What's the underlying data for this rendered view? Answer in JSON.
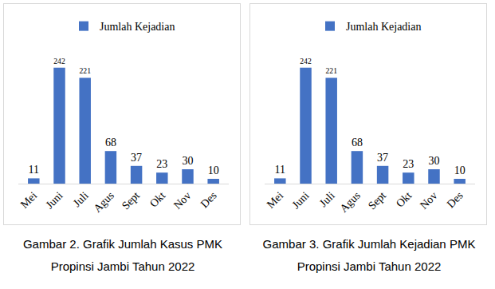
{
  "chart_data": [
    {
      "type": "bar",
      "title": "Gambar 2. Grafik Jumlah Kasus PMK Propinsi Jambi Tahun 2022",
      "categories": [
        "Mei",
        "Juni",
        "Juli",
        "Agus",
        "Sept",
        "Okt",
        "Nov",
        "Des"
      ],
      "series": [
        {
          "name": "Jumlah Kejadian",
          "color": "#4472c4",
          "values": [
            11,
            242,
            221,
            68,
            37,
            23,
            30,
            10
          ]
        }
      ],
      "ylim": [
        0,
        290
      ],
      "data_labels": true,
      "tick_labels": "x",
      "grid": false,
      "legend": "top"
    },
    {
      "type": "bar",
      "title": "Gambar 3. Grafik Jumlah Kejadian PMK Propinsi Jambi Tahun 2022",
      "categories": [
        "Mei",
        "Juni",
        "Juli",
        "Agus",
        "Sept",
        "Okt",
        "Nov",
        "Des"
      ],
      "series": [
        {
          "name": "Jumlah Kejadian",
          "color": "#4472c4",
          "values": [
            11,
            242,
            221,
            68,
            37,
            23,
            30,
            10
          ]
        }
      ],
      "ylim": [
        0,
        290
      ],
      "data_labels": true,
      "tick_labels": "x",
      "grid": false,
      "legend": "top"
    }
  ]
}
